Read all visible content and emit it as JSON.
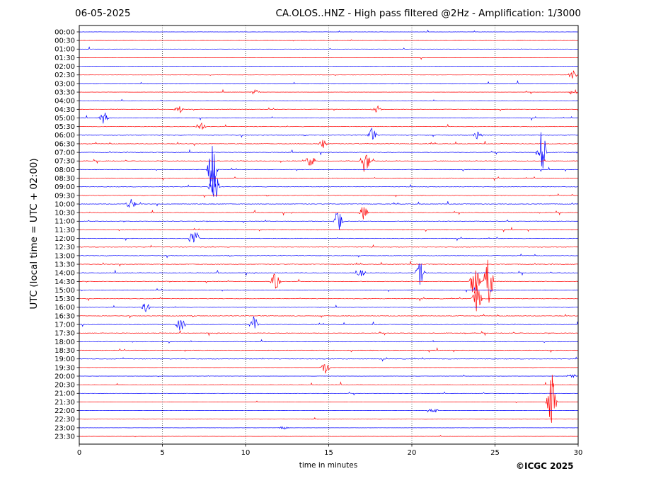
{
  "header": {
    "date": "06-05-2025",
    "title": "CA.OLOS..HNZ - High pass filtered @2Hz - Amplification: 1/3000"
  },
  "footer": {
    "copyright": "©ICGC 2025"
  },
  "chart_data": {
    "type": "line",
    "title": "CA.OLOS..HNZ - High pass filtered @2Hz - Amplification: 1/3000",
    "xlabel": "time in minutes",
    "ylabel": "UTC (local time = UTC + 02:00)",
    "xlim": [
      0,
      30
    ],
    "xticks": [
      0,
      5,
      10,
      15,
      20,
      25,
      30
    ],
    "grid": "vertical dotted at 5-minute intervals",
    "colors": {
      "odd_row": "#ff0000",
      "even_row": "#0000ff"
    },
    "rows": [
      "00:00",
      "00:30",
      "01:00",
      "01:30",
      "02:00",
      "02:30",
      "03:00",
      "03:30",
      "04:00",
      "04:30",
      "05:00",
      "05:30",
      "06:00",
      "06:30",
      "07:00",
      "07:30",
      "08:00",
      "08:30",
      "09:00",
      "09:30",
      "10:00",
      "10:30",
      "11:00",
      "11:30",
      "12:00",
      "12:30",
      "13:00",
      "13:30",
      "14:00",
      "14:30",
      "15:00",
      "15:30",
      "16:00",
      "16:30",
      "17:00",
      "17:30",
      "18:00",
      "18:30",
      "19:00",
      "19:30",
      "20:00",
      "20:30",
      "21:00",
      "21:30",
      "22:00",
      "22:30",
      "23:00",
      "23:30"
    ],
    "events": [
      {
        "row": "02:30",
        "minute": 29.7,
        "amplitude": 0.6
      },
      {
        "row": "03:30",
        "minute": 10.6,
        "amplitude": 0.4
      },
      {
        "row": "03:30",
        "minute": 29.7,
        "amplitude": 0.5
      },
      {
        "row": "04:30",
        "minute": 6.0,
        "amplitude": 0.5
      },
      {
        "row": "04:30",
        "minute": 17.9,
        "amplitude": 0.5
      },
      {
        "row": "05:00",
        "minute": 1.5,
        "amplitude": 0.8
      },
      {
        "row": "05:30",
        "minute": 7.3,
        "amplitude": 0.7
      },
      {
        "row": "06:00",
        "minute": 17.6,
        "amplitude": 0.9
      },
      {
        "row": "06:00",
        "minute": 24.0,
        "amplitude": 0.7
      },
      {
        "row": "06:30",
        "minute": 14.7,
        "amplitude": 0.6
      },
      {
        "row": "07:00",
        "minute": 27.8,
        "amplitude": 3.5
      },
      {
        "row": "07:30",
        "minute": 13.9,
        "amplitude": 0.9
      },
      {
        "row": "07:30",
        "minute": 17.2,
        "amplitude": 1.8
      },
      {
        "row": "08:00",
        "minute": 8.0,
        "amplitude": 4.5
      },
      {
        "row": "09:00",
        "minute": 8.1,
        "amplitude": 3.0
      },
      {
        "row": "10:00",
        "minute": 3.1,
        "amplitude": 0.8
      },
      {
        "row": "10:30",
        "minute": 17.1,
        "amplitude": 1.0
      },
      {
        "row": "11:00",
        "minute": 15.6,
        "amplitude": 1.4
      },
      {
        "row": "12:00",
        "minute": 6.9,
        "amplitude": 1.8
      },
      {
        "row": "14:00",
        "minute": 20.5,
        "amplitude": 1.6
      },
      {
        "row": "14:00",
        "minute": 16.9,
        "amplitude": 0.9
      },
      {
        "row": "14:30",
        "minute": 11.8,
        "amplitude": 1.2
      },
      {
        "row": "14:30",
        "minute": 23.8,
        "amplitude": 3.0
      },
      {
        "row": "14:30",
        "minute": 24.6,
        "amplitude": 4.0
      },
      {
        "row": "15:30",
        "minute": 23.9,
        "amplitude": 2.5
      },
      {
        "row": "16:00",
        "minute": 4.0,
        "amplitude": 0.6
      },
      {
        "row": "17:00",
        "minute": 10.5,
        "amplitude": 1.1
      },
      {
        "row": "17:00",
        "minute": 6.1,
        "amplitude": 0.9
      },
      {
        "row": "19:30",
        "minute": 14.8,
        "amplitude": 0.8
      },
      {
        "row": "20:00",
        "minute": 29.6,
        "amplitude": 0.4
      },
      {
        "row": "21:30",
        "minute": 28.4,
        "amplitude": 4.0
      },
      {
        "row": "22:00",
        "minute": 21.3,
        "amplitude": 0.4
      },
      {
        "row": "23:00",
        "minute": 12.3,
        "amplitude": 0.3
      }
    ]
  }
}
